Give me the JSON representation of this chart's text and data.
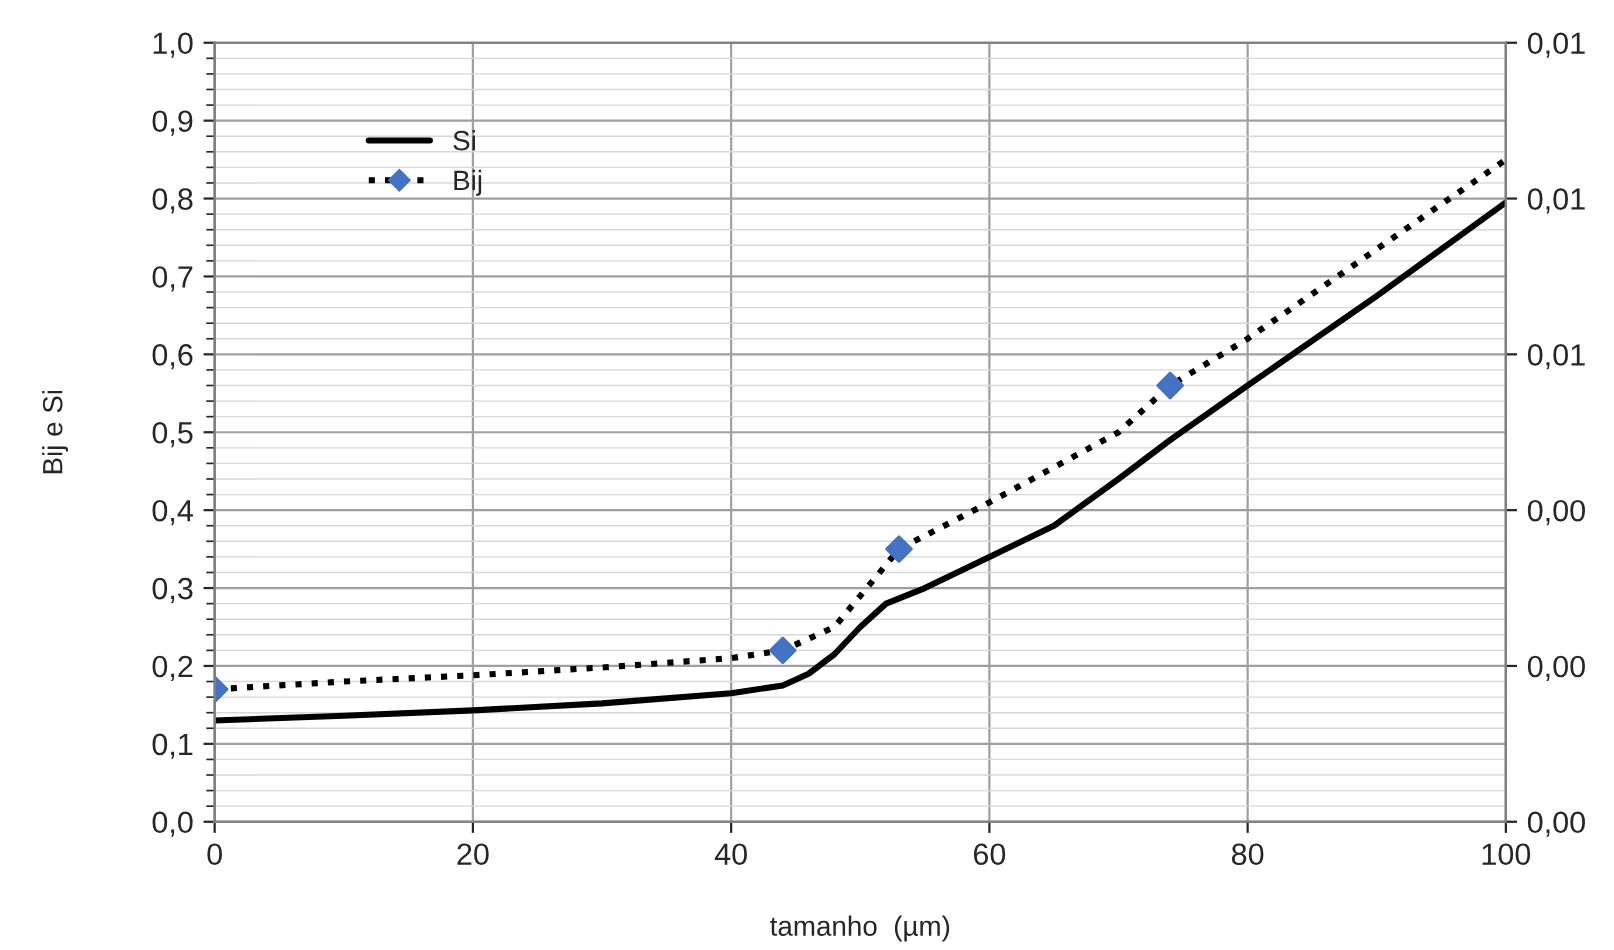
{
  "chart_data": {
    "type": "line",
    "xlabel": "tamanho  (µm)",
    "ylabel": "Bij e Si",
    "xlim": [
      0,
      100
    ],
    "xticks": [
      0,
      20,
      40,
      60,
      80,
      100
    ],
    "ylim": [
      0,
      1.0
    ],
    "yticks": [
      {
        "value": 0,
        "label": "0,0"
      },
      {
        "value": 0.1,
        "label": "0,1"
      },
      {
        "value": 0.2,
        "label": "0,2"
      },
      {
        "value": 0.3,
        "label": "0,3"
      },
      {
        "value": 0.4,
        "label": "0,4"
      },
      {
        "value": 0.5,
        "label": "0,5"
      },
      {
        "value": 0.6,
        "label": "0,6"
      },
      {
        "value": 0.7,
        "label": "0,7"
      },
      {
        "value": 0.8,
        "label": "0,8"
      },
      {
        "value": 0.9,
        "label": "0,9"
      },
      {
        "value": 1.0,
        "label": "1,0"
      }
    ],
    "y2lim": [
      0,
      0.0125
    ],
    "y2ticks": [
      {
        "value": 0,
        "label": "0,00"
      },
      {
        "value": 0.0025,
        "label": "0,00"
      },
      {
        "value": 0.005,
        "label": "0,00"
      },
      {
        "value": 0.0075,
        "label": "0,01"
      },
      {
        "value": 0.01,
        "label": "0,01"
      },
      {
        "value": 0.0125,
        "label": "0,01"
      }
    ],
    "grid": true,
    "legend": "top left",
    "series": [
      {
        "name": "Si",
        "color": "#000000",
        "line_style": "solid",
        "x": [
          0,
          10,
          20,
          30,
          40,
          44,
          46,
          48,
          50,
          52,
          55,
          60,
          65,
          70,
          74,
          80,
          90,
          100
        ],
        "values": [
          0.13,
          0.136,
          0.143,
          0.152,
          0.165,
          0.175,
          0.19,
          0.215,
          0.25,
          0.28,
          0.3,
          0.34,
          0.38,
          0.44,
          0.49,
          0.56,
          0.675,
          0.795
        ]
      },
      {
        "name": "Bij",
        "color": "#000000",
        "line_style": "dotted",
        "x": [
          0,
          10,
          20,
          30,
          40,
          44,
          48,
          50,
          53,
          60,
          70,
          74,
          80,
          90,
          100
        ],
        "values": [
          0.17,
          0.18,
          0.188,
          0.198,
          0.21,
          0.22,
          0.25,
          0.29,
          0.35,
          0.41,
          0.5,
          0.56,
          0.62,
          0.735,
          0.85
        ]
      },
      {
        "type": "scatter",
        "color": "#4472c4",
        "marker": "diamond",
        "x": [
          0,
          44,
          53,
          74
        ],
        "values": [
          0.17,
          0.22,
          0.35,
          0.56
        ]
      }
    ]
  }
}
